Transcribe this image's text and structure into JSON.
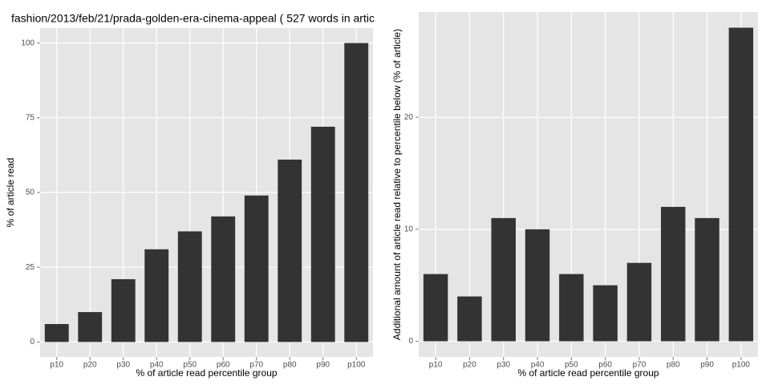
{
  "chart_data": [
    {
      "type": "bar",
      "title": "fashion/2013/feb/21/prada-golden-era-cinema-appeal ( 527 words in artic",
      "x_label": "% of article read percentile group",
      "y_label": "% of article read",
      "categories": [
        "p10",
        "p20",
        "p30",
        "p40",
        "p50",
        "p60",
        "p70",
        "p80",
        "p90",
        "p100"
      ],
      "values": [
        6,
        10,
        21,
        31,
        37,
        42,
        49,
        61,
        72,
        100
      ],
      "color": "#333333",
      "ylim": [
        -5,
        105
      ],
      "yticks": [
        0,
        25,
        50,
        75,
        100
      ],
      "grid": true
    },
    {
      "type": "bar",
      "x_label": "% of article read percentile group",
      "y_label": "Additional amount of article read relative to percentile below (% of article)",
      "categories": [
        "p10",
        "p20",
        "p30",
        "p40",
        "p50",
        "p60",
        "p70",
        "p80",
        "p90",
        "p100"
      ],
      "values": [
        6,
        4,
        11,
        10,
        6,
        5,
        7,
        12,
        11,
        28
      ],
      "color": "#333333",
      "ylim": [
        -1.4,
        29.4
      ],
      "yticks": [
        0,
        10,
        20
      ],
      "grid": true
    }
  ]
}
